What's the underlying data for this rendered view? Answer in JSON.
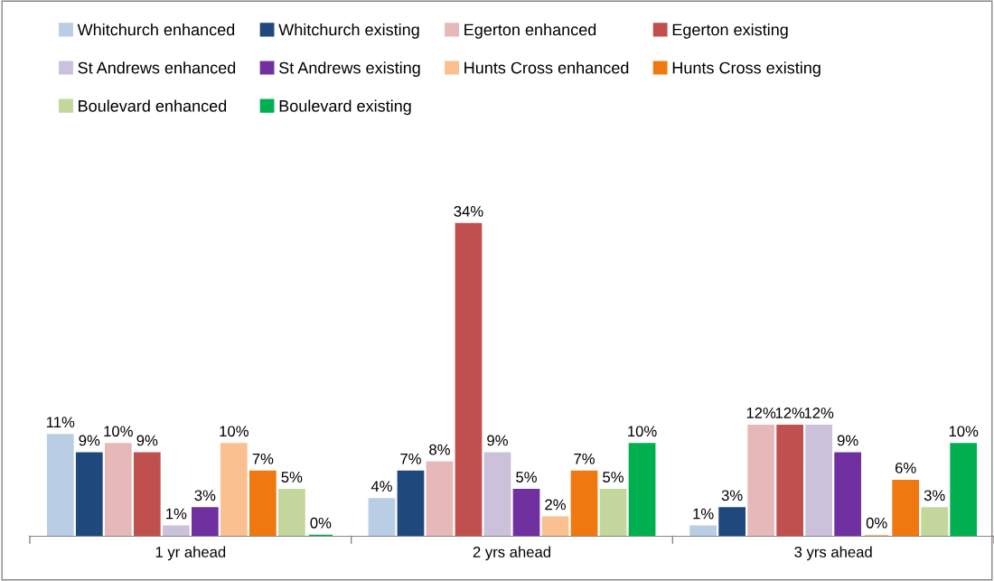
{
  "chart_data": {
    "type": "bar",
    "categories": [
      "1 yr ahead",
      "2 yrs ahead",
      "3 yrs ahead"
    ],
    "series": [
      {
        "name": "Whitchurch enhanced",
        "color": "#b9cde5",
        "values": [
          11,
          4,
          1
        ],
        "value_labels": [
          "11%",
          "4%",
          "1%"
        ]
      },
      {
        "name": "Whitchurch existing",
        "color": "#1f497d",
        "values": [
          9,
          7,
          3
        ],
        "value_labels": [
          "9%",
          "7%",
          "3%"
        ]
      },
      {
        "name": "Egerton enhanced",
        "color": "#e6b9b8",
        "values": [
          10,
          8,
          12
        ],
        "value_labels": [
          "10%",
          "8%",
          "12%"
        ]
      },
      {
        "name": "Egerton existing",
        "color": "#c0504d",
        "values": [
          9,
          34,
          12
        ],
        "value_labels": [
          "9%",
          "34%",
          "12%"
        ]
      },
      {
        "name": "St Andrews enhanced",
        "color": "#ccc1da",
        "values": [
          1,
          9,
          12
        ],
        "value_labels": [
          "1%",
          "9%",
          "12%"
        ]
      },
      {
        "name": "St Andrews existing",
        "color": "#7030a0",
        "values": [
          3,
          5,
          9
        ],
        "value_labels": [
          "3%",
          "5%",
          "9%"
        ]
      },
      {
        "name": "Hunts Cross enhanced",
        "color": "#fac090",
        "values": [
          10,
          2,
          0
        ],
        "value_labels": [
          "10%",
          "2%",
          "0%"
        ]
      },
      {
        "name": "Hunts Cross existing",
        "color": "#f07810",
        "values": [
          7,
          7,
          6
        ],
        "value_labels": [
          "7%",
          "7%",
          "6%"
        ]
      },
      {
        "name": "Boulevard enhanced",
        "color": "#c3d69b",
        "values": [
          5,
          5,
          3
        ],
        "value_labels": [
          "5%",
          "5%",
          "3%"
        ]
      },
      {
        "name": "Boulevard existing",
        "color": "#00b050",
        "values": [
          0,
          10,
          10
        ],
        "value_labels": [
          "0%",
          "10%",
          "10%"
        ]
      }
    ],
    "legend": "top",
    "grid": false
  }
}
